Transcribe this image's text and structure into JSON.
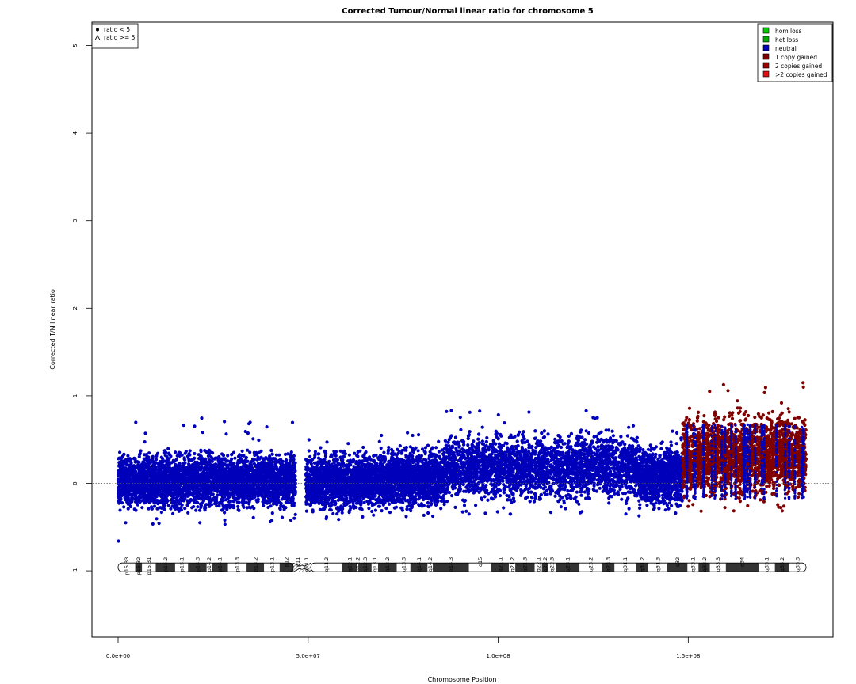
{
  "chart_data": {
    "type": "scatter",
    "title": "Corrected Tumour/Normal linear ratio for chromosome  5",
    "xlabel": "Chromosome Position",
    "ylabel": "Corrected T/N linear ratio",
    "xlim": [
      0,
      181000000
    ],
    "ylim": [
      -1.8,
      5.2
    ],
    "x_ticks": [
      {
        "value": 0,
        "label": "0.0e+00"
      },
      {
        "value": 50000000,
        "label": "5.0e+07"
      },
      {
        "value": 100000000,
        "label": "1.0e+08"
      },
      {
        "value": 150000000,
        "label": "1.5e+08"
      }
    ],
    "y_ticks": [
      {
        "value": -1,
        "label": "-1"
      },
      {
        "value": 0,
        "label": "0"
      },
      {
        "value": 1,
        "label": "1"
      },
      {
        "value": 2,
        "label": "2"
      },
      {
        "value": 3,
        "label": "3"
      },
      {
        "value": 4,
        "label": "4"
      },
      {
        "value": 5,
        "label": "5"
      }
    ],
    "reference_line": {
      "y": 0,
      "style": "dotted"
    },
    "shape_legend": {
      "placement": "top-left",
      "entries": [
        {
          "symbol": "dot",
          "label": "ratio < 5"
        },
        {
          "symbol": "triangle",
          "label": "ratio >= 5"
        }
      ]
    },
    "color_legend": {
      "placement": "top-right",
      "entries": [
        {
          "label": "hom loss",
          "color": "#00cc00"
        },
        {
          "label": "het loss",
          "color": "#00aa00"
        },
        {
          "label": "neutral",
          "color": "#0000bb"
        },
        {
          "label": "1 copy gained",
          "color": "#800000"
        },
        {
          "label": "2 copies gained",
          "color": "#990000"
        },
        {
          "label": ">2 copies gained",
          "color": "#dd1111"
        }
      ]
    },
    "series": [
      {
        "name": "neutral",
        "color": "#0000bb",
        "segments": [
          {
            "x_start": 0,
            "x_end": 46700000,
            "y_low": -0.32,
            "y_high": 0.38,
            "y_outlier_low": -0.47,
            "y_outlier_high": 0.77
          },
          {
            "x_start": 49400000,
            "x_end": 69000000,
            "y_low": -0.33,
            "y_high": 0.37,
            "y_outlier_low": -0.42,
            "y_outlier_high": 0.55
          },
          {
            "x_start": 69000000,
            "x_end": 86000000,
            "y_low": -0.31,
            "y_high": 0.42,
            "y_outlier_low": -0.4,
            "y_outlier_high": 0.59
          },
          {
            "x_start": 86000000,
            "x_end": 137000000,
            "y_low": -0.22,
            "y_high": 0.6,
            "y_outlier_low": -0.36,
            "y_outlier_high": 0.84
          },
          {
            "x_start": 137000000,
            "x_end": 148500000,
            "y_low": -0.3,
            "y_high": 0.46,
            "y_outlier_low": -0.38,
            "y_outlier_high": 0.6
          }
        ]
      },
      {
        "name": "1 copy gained",
        "color": "#800000",
        "segments": [
          {
            "x_start": 148500000,
            "x_end": 181000000,
            "y_low": -0.18,
            "y_high": 0.82,
            "y_outlier_low": -0.32,
            "y_outlier_high": 1.15
          }
        ]
      }
    ],
    "outliers": [
      {
        "x": 100000,
        "y": -0.66
      },
      {
        "x": 180200000,
        "y": 1.15
      },
      {
        "x": 180300000,
        "y": 1.1
      }
    ],
    "ideogram": {
      "y": -0.96,
      "centromere": 48400000,
      "bands": [
        {
          "name": "p15.33",
          "start": 0,
          "end": 4500000,
          "stain": "gneg"
        },
        {
          "name": "p15.32",
          "start": 4500000,
          "end": 6300000,
          "stain": "gpos"
        },
        {
          "name": "p15.31",
          "start": 6300000,
          "end": 9900000,
          "stain": "gneg"
        },
        {
          "name": "p15.2",
          "start": 9900000,
          "end": 15000000,
          "stain": "gpos"
        },
        {
          "name": "p15.1",
          "start": 15000000,
          "end": 18400000,
          "stain": "gneg"
        },
        {
          "name": "p14.3",
          "start": 18400000,
          "end": 23300000,
          "stain": "gpos"
        },
        {
          "name": "p14.2",
          "start": 23300000,
          "end": 24600000,
          "stain": "gneg"
        },
        {
          "name": "p14.1",
          "start": 24600000,
          "end": 28900000,
          "stain": "gpos"
        },
        {
          "name": "p13.3",
          "start": 28900000,
          "end": 33800000,
          "stain": "gneg"
        },
        {
          "name": "p13.2",
          "start": 33800000,
          "end": 38400000,
          "stain": "gpos"
        },
        {
          "name": "p13.1",
          "start": 38400000,
          "end": 42500000,
          "stain": "gneg"
        },
        {
          "name": "p12",
          "start": 42500000,
          "end": 46100000,
          "stain": "gpos"
        },
        {
          "name": "p11",
          "start": 46100000,
          "end": 48400000,
          "stain": "acen"
        },
        {
          "name": "q11.1",
          "start": 48400000,
          "end": 50700000,
          "stain": "acen"
        },
        {
          "name": "q11.2",
          "start": 50700000,
          "end": 58900000,
          "stain": "gneg"
        },
        {
          "name": "q12.1",
          "start": 58900000,
          "end": 62900000,
          "stain": "gpos"
        },
        {
          "name": "q12.2",
          "start": 62900000,
          "end": 63200000,
          "stain": "gneg"
        },
        {
          "name": "q12.3",
          "start": 63200000,
          "end": 66700000,
          "stain": "gpos"
        },
        {
          "name": "q13.1",
          "start": 66700000,
          "end": 68400000,
          "stain": "gneg"
        },
        {
          "name": "q13.2",
          "start": 68400000,
          "end": 73300000,
          "stain": "gpos"
        },
        {
          "name": "q13.3",
          "start": 73300000,
          "end": 76900000,
          "stain": "gneg"
        },
        {
          "name": "q14.1",
          "start": 76900000,
          "end": 81400000,
          "stain": "gpos"
        },
        {
          "name": "q14.2",
          "start": 81400000,
          "end": 82800000,
          "stain": "gneg"
        },
        {
          "name": "q14.3",
          "start": 82800000,
          "end": 92300000,
          "stain": "gpos"
        },
        {
          "name": "q15",
          "start": 92300000,
          "end": 98200000,
          "stain": "gneg"
        },
        {
          "name": "q21.1",
          "start": 98200000,
          "end": 102800000,
          "stain": "gpos"
        },
        {
          "name": "q21.2",
          "start": 102800000,
          "end": 104500000,
          "stain": "gneg"
        },
        {
          "name": "q21.3",
          "start": 104500000,
          "end": 109600000,
          "stain": "gpos"
        },
        {
          "name": "q22.1",
          "start": 109600000,
          "end": 111500000,
          "stain": "gneg"
        },
        {
          "name": "q22.2",
          "start": 111500000,
          "end": 113100000,
          "stain": "gpos"
        },
        {
          "name": "q22.3",
          "start": 113100000,
          "end": 115200000,
          "stain": "gneg"
        },
        {
          "name": "q23.1",
          "start": 115200000,
          "end": 121400000,
          "stain": "gpos"
        },
        {
          "name": "q23.2",
          "start": 121400000,
          "end": 127300000,
          "stain": "gneg"
        },
        {
          "name": "q23.3",
          "start": 127300000,
          "end": 130600000,
          "stain": "gpos"
        },
        {
          "name": "q31.1",
          "start": 130600000,
          "end": 136200000,
          "stain": "gneg"
        },
        {
          "name": "q31.2",
          "start": 136200000,
          "end": 139500000,
          "stain": "gpos"
        },
        {
          "name": "q31.3",
          "start": 139500000,
          "end": 144500000,
          "stain": "gneg"
        },
        {
          "name": "q32",
          "start": 144500000,
          "end": 149800000,
          "stain": "gpos"
        },
        {
          "name": "q33.1",
          "start": 149800000,
          "end": 152700000,
          "stain": "gneg"
        },
        {
          "name": "q33.2",
          "start": 152700000,
          "end": 155700000,
          "stain": "gpos"
        },
        {
          "name": "q33.3",
          "start": 155700000,
          "end": 159900000,
          "stain": "gneg"
        },
        {
          "name": "q34",
          "start": 159900000,
          "end": 168500000,
          "stain": "gpos"
        },
        {
          "name": "q35.1",
          "start": 168500000,
          "end": 172800000,
          "stain": "gneg"
        },
        {
          "name": "q35.2",
          "start": 172800000,
          "end": 176600000,
          "stain": "gpos"
        },
        {
          "name": "q35.3",
          "start": 176600000,
          "end": 181000000,
          "stain": "gneg"
        }
      ]
    },
    "grid": false
  }
}
